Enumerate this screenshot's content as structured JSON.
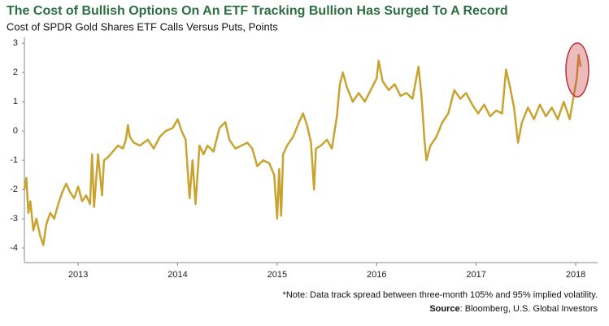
{
  "chart_data": {
    "type": "line",
    "title": "The Cost of Bullish Options On An ETF Tracking Bullion Has Surged To A Record",
    "subtitle": "Cost of SPDR Gold Shares ETF Calls Versus Puts, Points",
    "note": "*Note: Data track spread between three-month 105% and 95% implied volatility.",
    "source": {
      "label": "Source",
      "text": ": Bloomberg, U.S. Global Investors"
    },
    "color": "#c9a330",
    "xlim": [
      2012.46,
      2018.22
    ],
    "xticks": [
      2013,
      2014,
      2015,
      2016,
      2017,
      2018
    ],
    "ylim": [
      -4.5,
      3.2
    ],
    "yticks": [
      3,
      2,
      1,
      0,
      -1,
      -2,
      -3,
      -4
    ],
    "grid": false,
    "x": [
      2012.46,
      2012.48,
      2012.5,
      2012.52,
      2012.55,
      2012.58,
      2012.62,
      2012.65,
      2012.68,
      2012.72,
      2012.76,
      2012.8,
      2012.84,
      2012.88,
      2012.92,
      2012.96,
      2013.0,
      2013.04,
      2013.08,
      2013.12,
      2013.14,
      2013.16,
      2013.2,
      2013.24,
      2013.26,
      2013.3,
      2013.35,
      2013.4,
      2013.45,
      2013.48,
      2013.5,
      2013.52,
      2013.56,
      2013.62,
      2013.7,
      2013.76,
      2013.82,
      2013.88,
      2013.95,
      2014.0,
      2014.04,
      2014.08,
      2014.12,
      2014.15,
      2014.18,
      2014.22,
      2014.26,
      2014.3,
      2014.36,
      2014.42,
      2014.48,
      2014.52,
      2014.58,
      2014.64,
      2014.7,
      2014.75,
      2014.8,
      2014.86,
      2014.92,
      2014.97,
      2015.0,
      2015.02,
      2015.04,
      2015.06,
      2015.1,
      2015.16,
      2015.22,
      2015.26,
      2015.3,
      2015.34,
      2015.37,
      2015.39,
      2015.44,
      2015.5,
      2015.55,
      2015.6,
      2015.63,
      2015.66,
      2015.7,
      2015.76,
      2015.82,
      2015.88,
      2015.94,
      2016.0,
      2016.02,
      2016.06,
      2016.12,
      2016.18,
      2016.24,
      2016.3,
      2016.36,
      2016.42,
      2016.45,
      2016.48,
      2016.5,
      2016.54,
      2016.6,
      2016.66,
      2016.72,
      2016.78,
      2016.84,
      2016.9,
      2016.96,
      2017.02,
      2017.08,
      2017.14,
      2017.2,
      2017.26,
      2017.3,
      2017.34,
      2017.38,
      2017.42,
      2017.46,
      2017.52,
      2017.58,
      2017.64,
      2017.7,
      2017.76,
      2017.82,
      2017.88,
      2017.94,
      2017.98,
      2018.01,
      2018.03,
      2018.05
    ],
    "values": [
      -2.0,
      -1.6,
      -2.8,
      -2.4,
      -3.4,
      -3.0,
      -3.6,
      -3.9,
      -3.2,
      -2.8,
      -3.0,
      -2.5,
      -2.1,
      -1.8,
      -2.1,
      -2.3,
      -1.9,
      -2.4,
      -2.2,
      -2.5,
      -0.8,
      -2.6,
      -0.8,
      -2.2,
      -1.0,
      -0.9,
      -0.7,
      -0.5,
      -0.6,
      -0.3,
      0.2,
      -0.2,
      -0.4,
      -0.5,
      -0.3,
      -0.6,
      -0.2,
      0.0,
      0.1,
      0.4,
      0.0,
      -0.3,
      -2.3,
      -1.0,
      -2.5,
      -0.5,
      -0.8,
      -0.5,
      -0.7,
      0.1,
      0.3,
      -0.3,
      -0.6,
      -0.5,
      -0.4,
      -0.6,
      -1.2,
      -1.0,
      -1.1,
      -1.5,
      -3.0,
      -1.3,
      -2.9,
      -0.8,
      -0.5,
      -0.2,
      0.3,
      0.6,
      0.2,
      -0.4,
      -2.0,
      -0.6,
      -0.5,
      -0.3,
      -0.6,
      0.5,
      1.6,
      2.0,
      1.5,
      1.0,
      1.3,
      1.0,
      1.4,
      1.8,
      2.4,
      1.7,
      1.4,
      1.6,
      1.2,
      1.3,
      1.1,
      2.2,
      1.2,
      -0.3,
      -1.0,
      -0.5,
      -0.2,
      0.3,
      0.6,
      1.4,
      1.1,
      1.3,
      0.9,
      0.6,
      0.9,
      0.5,
      0.7,
      0.6,
      2.1,
      1.5,
      0.8,
      -0.4,
      0.3,
      0.8,
      0.4,
      0.9,
      0.5,
      0.8,
      0.4,
      1.0,
      0.4,
      1.2,
      1.8,
      2.6,
      2.2
    ]
  }
}
